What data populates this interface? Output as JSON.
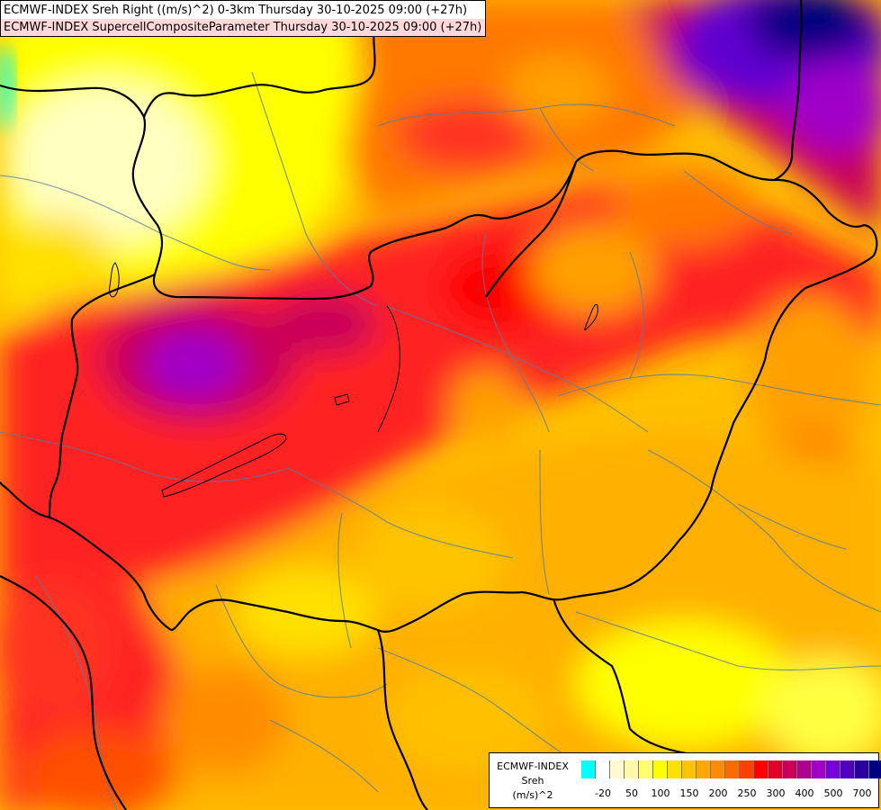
{
  "header": {
    "title_line_1": "ECMWF-INDEX Sreh Right ((m/s)^2) 0-3km Thursday 30-10-2025 09:00 (+27h)",
    "title_line_2": "ECMWF-INDEX SupercellCompositeParameter Thursday 30-10-2025 09:00 (+27h)"
  },
  "legend": {
    "label_line_1": "ECMWF-INDEX",
    "label_line_2": "Sreh",
    "label_line_3": "(m/s)^2",
    "colors": [
      "#00ffff",
      "#ffffff",
      "#fff8d0",
      "#fff8a8",
      "#ffff70",
      "#ffff00",
      "#ffe000",
      "#ffc400",
      "#ffa800",
      "#ff8c00",
      "#ff6a00",
      "#ff4000",
      "#ff0000",
      "#e0002a",
      "#c8005a",
      "#b00090",
      "#a000c8",
      "#7800d8",
      "#5000c0",
      "#2800a0",
      "#000080"
    ],
    "ticks": [
      "-20",
      "50",
      "100",
      "150",
      "200",
      "250",
      "300",
      "400",
      "500",
      "700"
    ]
  },
  "map": {
    "colors": {
      "yellow": "#ffff00",
      "pale_yellow": "#ffffc0",
      "gold": "#ffd000",
      "orange": "#ffa000",
      "dark_orange": "#ff7800",
      "red": "#ff2020",
      "magenta": "#d0006a",
      "purple": "#a000c8",
      "violet": "#6000d0",
      "navy": "#000080",
      "cyan": "#00ffff"
    }
  }
}
